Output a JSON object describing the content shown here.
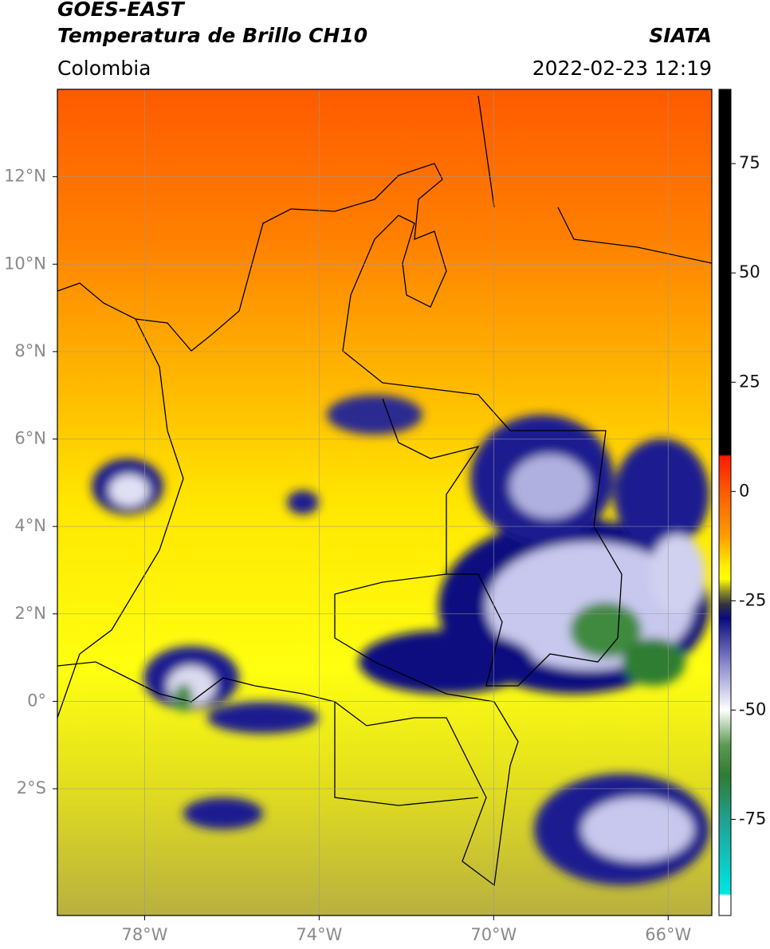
{
  "header": {
    "line1": "GOES-EAST",
    "line2": "Temperatura de Brillo CH10",
    "source": "SIATA",
    "region": "Colombia",
    "datetime": "2022-02-23 12:19"
  },
  "map": {
    "xlim": [
      -80,
      -65
    ],
    "ylim": [
      -4.9,
      14
    ],
    "xticks": [
      {
        "value": -78,
        "label": "78°W"
      },
      {
        "value": -74,
        "label": "74°W"
      },
      {
        "value": -70,
        "label": "70°W"
      },
      {
        "value": -66,
        "label": "66°W"
      }
    ],
    "yticks": [
      {
        "value": 12,
        "label": "12°N"
      },
      {
        "value": 10,
        "label": "10°N"
      },
      {
        "value": 8,
        "label": "8°N"
      },
      {
        "value": 6,
        "label": "6°N"
      },
      {
        "value": 4,
        "label": "4°N"
      },
      {
        "value": 2,
        "label": "2°N"
      },
      {
        "value": 0,
        "label": "0°"
      },
      {
        "value": -2,
        "label": "2°S"
      }
    ],
    "grid": true
  },
  "colorbar": {
    "lim": [
      -97,
      92
    ],
    "ticks": [
      75,
      50,
      25,
      0,
      -25,
      -50,
      -75
    ],
    "stops": [
      {
        "value": 92,
        "color": "#000000"
      },
      {
        "value": 8.5,
        "color": "#000000"
      },
      {
        "value": 8,
        "color": "#ff1a00"
      },
      {
        "value": 0,
        "color": "#ff5a00"
      },
      {
        "value": -10,
        "color": "#ff9900"
      },
      {
        "value": -17,
        "color": "#ffee00"
      },
      {
        "value": -20,
        "color": "#ffff00"
      },
      {
        "value": -23,
        "color": "#8a8a2a"
      },
      {
        "value": -26,
        "color": "#303040"
      },
      {
        "value": -29,
        "color": "#0a0a80"
      },
      {
        "value": -40,
        "color": "#9090d0"
      },
      {
        "value": -50,
        "color": "#ffffff"
      },
      {
        "value": -58,
        "color": "#5a9a50"
      },
      {
        "value": -65,
        "color": "#2e7d32"
      },
      {
        "value": -75,
        "color": "#20a090"
      },
      {
        "value": -92,
        "color": "#00e6e6"
      },
      {
        "value": -92.5,
        "color": "#ffffff"
      },
      {
        "value": -97,
        "color": "#ffffff"
      }
    ]
  }
}
